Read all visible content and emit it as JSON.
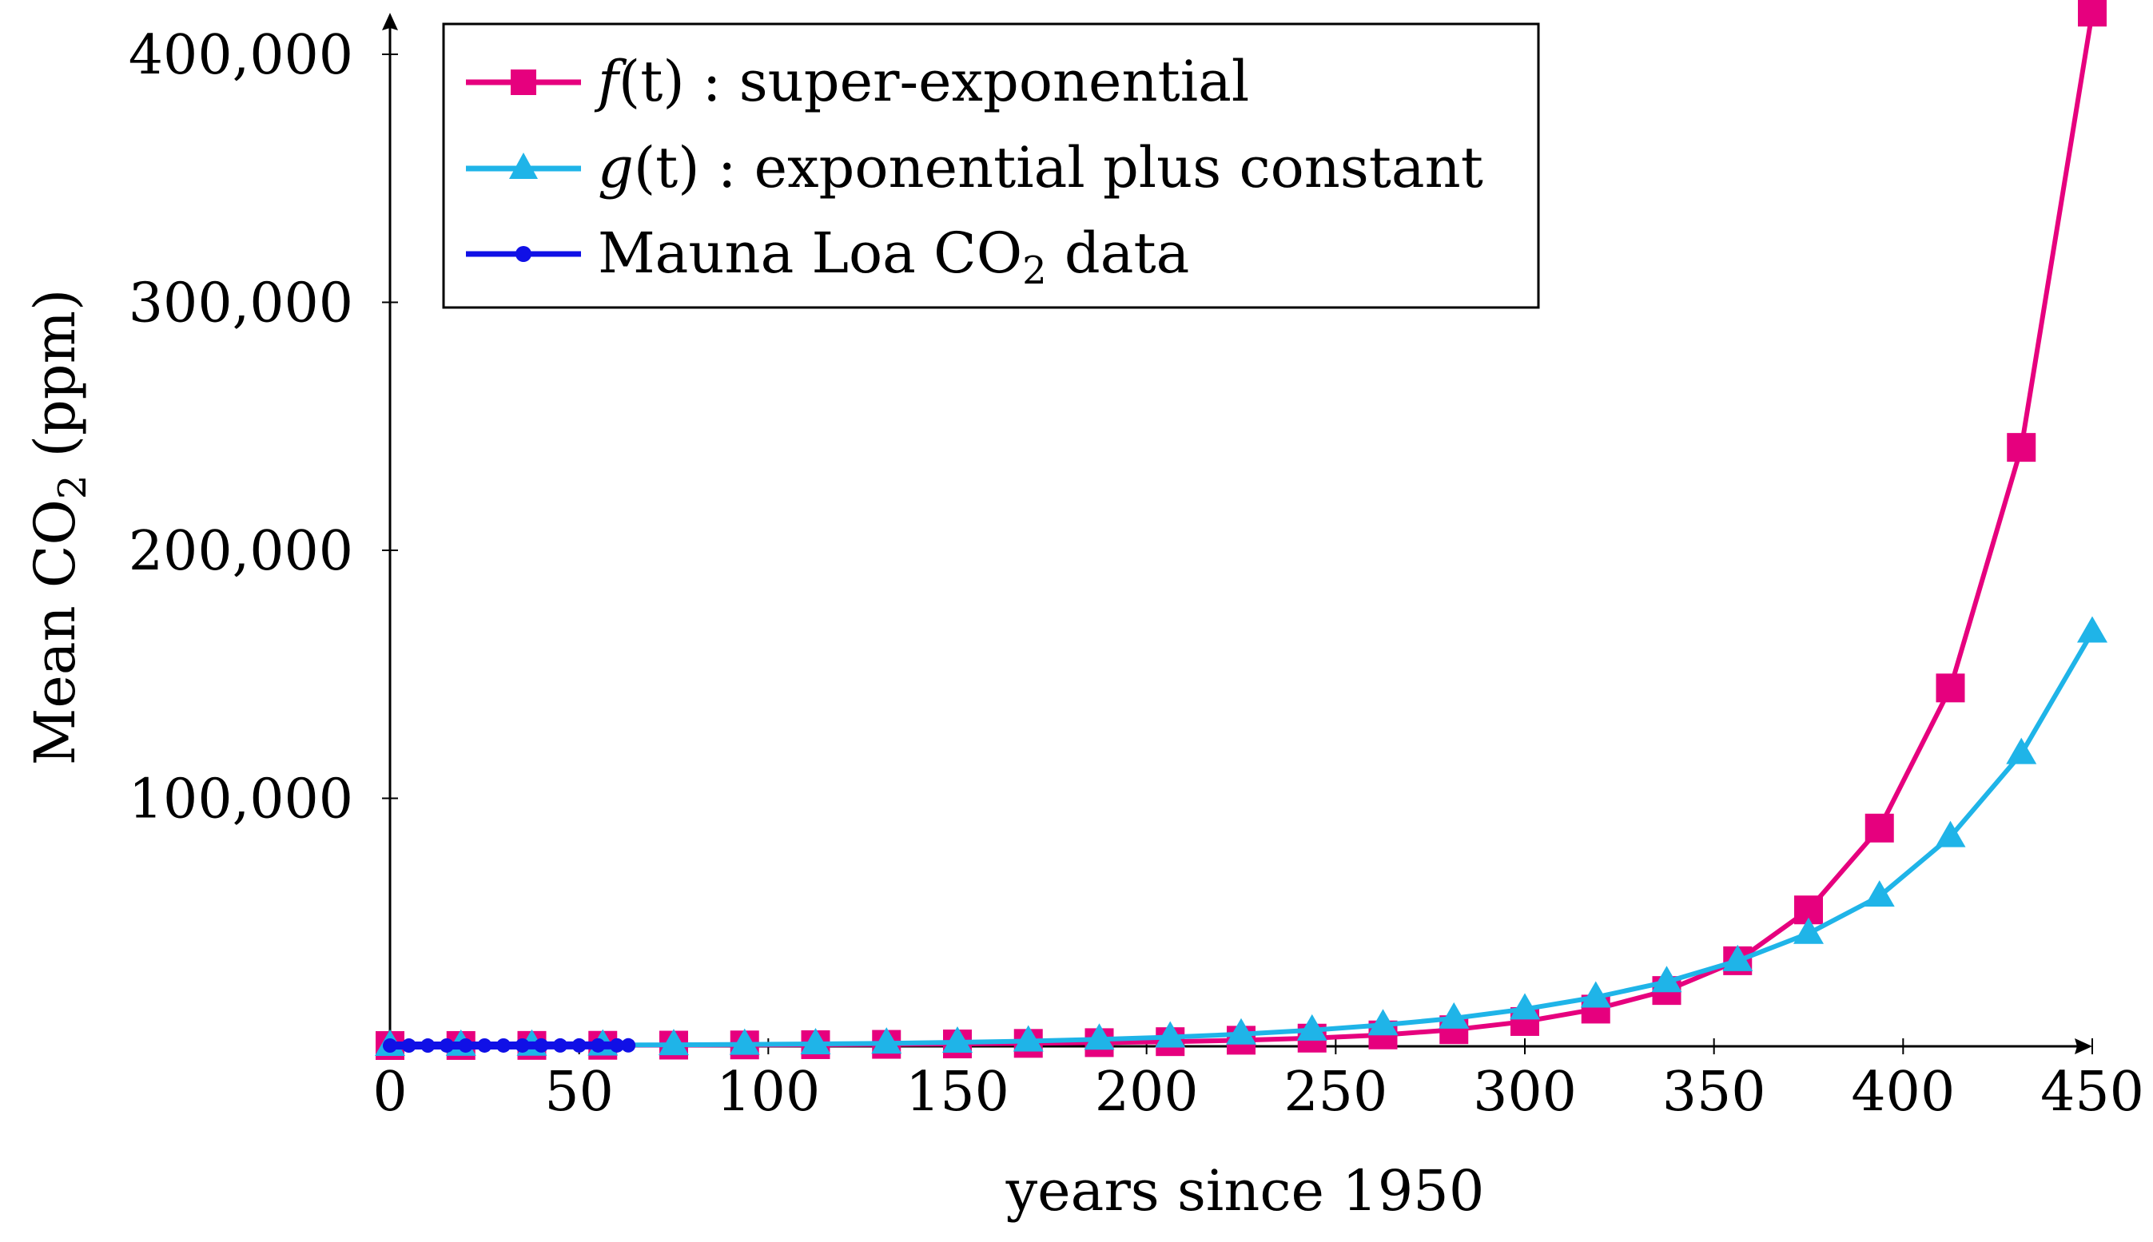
{
  "chart_data": {
    "type": "line",
    "xlabel": "years since 1950",
    "ylabel": {
      "main": "Mean CO",
      "sub": "2",
      "unit": " (ppm)"
    },
    "xlim": [
      0,
      450
    ],
    "ylim": [
      0,
      420000
    ],
    "x_ticks": [
      0,
      50,
      100,
      150,
      200,
      250,
      300,
      350,
      400,
      450
    ],
    "x_tick_labels": [
      "0",
      "50",
      "100",
      "150",
      "200",
      "250",
      "300",
      "350",
      "400",
      "450"
    ],
    "y_ticks": [
      100000,
      200000,
      300000,
      400000
    ],
    "y_tick_labels": [
      "100,000",
      "200,000",
      "300,000",
      "400,000"
    ],
    "grid": false,
    "legend_position": "top-left",
    "legend": [
      {
        "symbol": "f",
        "arg": "(t)",
        "desc": " : super-exponential"
      },
      {
        "symbol": "g",
        "arg": "(t)",
        "desc": " : exponential plus constant"
      },
      {
        "main": "Mauna Loa CO",
        "sub": "2",
        "desc": " data"
      }
    ],
    "series": [
      {
        "marker": "square",
        "color": "#e6007e",
        "x": [
          0,
          18.75,
          37.5,
          56.25,
          75,
          93.75,
          112.5,
          131.25,
          150,
          168.75,
          187.5,
          206.25,
          225,
          243.75,
          262.5,
          281.25,
          300,
          318.75,
          337.5,
          356.25,
          375,
          393.75,
          412.5,
          431.25,
          450
        ],
        "values": [
          315,
          340,
          370,
          410,
          480,
          560,
          660,
          790,
          960,
          1180,
          1480,
          1880,
          2450,
          3300,
          4600,
          6700,
          10000,
          15000,
          22500,
          34500,
          55000,
          88000,
          144500,
          241500,
          417000
        ]
      },
      {
        "marker": "triangle",
        "color": "#1fb4e8",
        "x": [
          0,
          18.75,
          37.5,
          56.25,
          75,
          93.75,
          112.5,
          131.25,
          150,
          168.75,
          187.5,
          206.25,
          225,
          243.75,
          262.5,
          281.25,
          300,
          318.75,
          337.5,
          356.25,
          375,
          393.75,
          412.5,
          431.25,
          450
        ],
        "values": [
          315,
          360,
          420,
          500,
          610,
          760,
          960,
          1230,
          1600,
          2100,
          2800,
          3700,
          4900,
          6500,
          8600,
          11300,
          15000,
          19800,
          26000,
          34500,
          45500,
          60500,
          84500,
          118000,
          167000
        ]
      },
      {
        "marker": "dot",
        "color": "#1010e6",
        "x": [
          0,
          5,
          10,
          15,
          20,
          25,
          30,
          35,
          40,
          45,
          50,
          55,
          60,
          63
        ],
        "values": [
          315,
          318,
          321,
          324,
          327,
          331,
          335,
          340,
          345,
          351,
          358,
          366,
          375,
          390
        ]
      }
    ]
  }
}
